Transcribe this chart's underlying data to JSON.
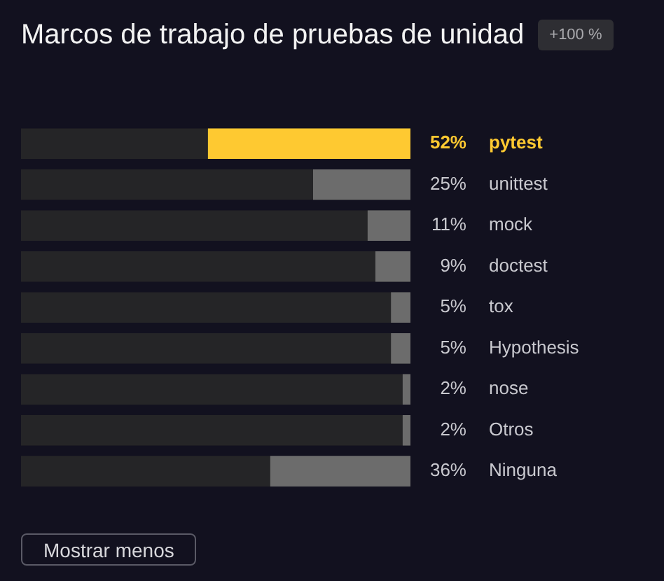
{
  "chart_data": {
    "type": "bar",
    "orientation": "horizontal",
    "title": "Marcos de trabajo de pruebas de unidad",
    "categories": [
      "pytest",
      "unittest",
      "mock",
      "doctest",
      "tox",
      "Hypothesis",
      "nose",
      "Otros",
      "Ninguna"
    ],
    "values": [
      52,
      25,
      11,
      9,
      5,
      5,
      2,
      2,
      36
    ],
    "colors": [
      "#fec931",
      "#6c6c6c",
      "#6c6c6c",
      "#6c6c6c",
      "#6c6c6c",
      "#6c6c6c",
      "#6c6c6c",
      "#6c6c6c",
      "#6c6c6c"
    ],
    "value_labels": [
      "52%",
      "25%",
      "11%",
      "9%",
      "5%",
      "5%",
      "2%",
      "2%",
      "36%"
    ],
    "xlim": [
      100,
      0
    ],
    "legend": false,
    "tick_labels": "y",
    "annotations": [
      "+100 %",
      "Mostrar menos"
    ]
  }
}
